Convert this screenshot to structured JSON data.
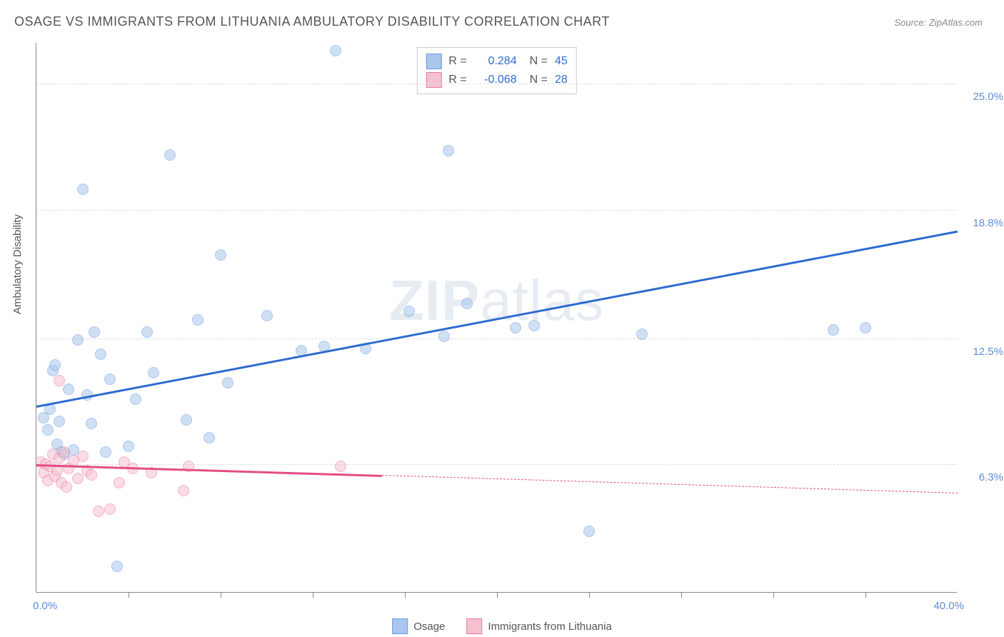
{
  "title": "OSAGE VS IMMIGRANTS FROM LITHUANIA AMBULATORY DISABILITY CORRELATION CHART",
  "source": "Source: ZipAtlas.com",
  "ylabel": "Ambulatory Disability",
  "watermark_bold": "ZIP",
  "watermark_rest": "atlas",
  "chart": {
    "type": "scatter",
    "xlim": [
      0,
      40
    ],
    "ylim": [
      0,
      27
    ],
    "x_axis_min_label": "0.0%",
    "x_axis_max_label": "40.0%",
    "y_ticks": [
      {
        "v": 6.3,
        "label": "6.3%"
      },
      {
        "v": 12.5,
        "label": "12.5%"
      },
      {
        "v": 18.8,
        "label": "18.8%"
      },
      {
        "v": 25.0,
        "label": "25.0%"
      }
    ],
    "x_tick_positions": [
      4,
      8,
      12,
      16,
      20,
      24,
      28,
      32,
      36
    ],
    "background_color": "#ffffff",
    "grid_color": "#dddddd",
    "axis_color": "#888888",
    "marker_radius": 8,
    "marker_opacity": 0.55,
    "series": [
      {
        "name": "Osage",
        "color_fill": "#a9c6ec",
        "color_stroke": "#6b9bdc",
        "trend_color": "#2f6bd0",
        "R": "0.284",
        "N": "45",
        "trend": {
          "x1": 0,
          "y1": 9.2,
          "x2": 40,
          "y2": 17.8,
          "dashed_from": 40
        },
        "points": [
          [
            0.3,
            8.6
          ],
          [
            0.5,
            8.0
          ],
          [
            0.6,
            9.0
          ],
          [
            0.7,
            10.9
          ],
          [
            0.8,
            11.2
          ],
          [
            0.9,
            7.3
          ],
          [
            1.0,
            8.4
          ],
          [
            1.1,
            6.9
          ],
          [
            1.2,
            6.8
          ],
          [
            1.4,
            10.0
          ],
          [
            1.6,
            7.0
          ],
          [
            1.8,
            12.4
          ],
          [
            2.0,
            19.8
          ],
          [
            2.2,
            9.7
          ],
          [
            2.4,
            8.3
          ],
          [
            2.5,
            12.8
          ],
          [
            2.8,
            11.7
          ],
          [
            3.0,
            6.9
          ],
          [
            3.2,
            10.5
          ],
          [
            3.5,
            1.3
          ],
          [
            4.0,
            7.2
          ],
          [
            4.3,
            9.5
          ],
          [
            4.8,
            12.8
          ],
          [
            5.1,
            10.8
          ],
          [
            5.8,
            21.5
          ],
          [
            6.5,
            8.5
          ],
          [
            7.0,
            13.4
          ],
          [
            7.5,
            7.6
          ],
          [
            8.0,
            16.6
          ],
          [
            8.3,
            10.3
          ],
          [
            10.0,
            13.6
          ],
          [
            11.5,
            11.9
          ],
          [
            12.5,
            12.1
          ],
          [
            13.0,
            26.6
          ],
          [
            14.3,
            12.0
          ],
          [
            16.2,
            13.8
          ],
          [
            17.7,
            12.6
          ],
          [
            17.9,
            21.7
          ],
          [
            18.7,
            14.2
          ],
          [
            20.8,
            13.0
          ],
          [
            21.6,
            13.1
          ],
          [
            24.0,
            3.0
          ],
          [
            26.3,
            12.7
          ],
          [
            34.6,
            12.9
          ],
          [
            36.0,
            13.0
          ]
        ]
      },
      {
        "name": "Immigrants from Lithuania",
        "color_fill": "#f5c1cf",
        "color_stroke": "#e77aa0",
        "trend_color": "#e44d87",
        "R": "-0.068",
        "N": "28",
        "trend": {
          "x1": 0,
          "y1": 6.3,
          "x2": 40,
          "y2": 4.9,
          "dashed_from": 15
        },
        "points": [
          [
            0.2,
            6.4
          ],
          [
            0.3,
            5.9
          ],
          [
            0.4,
            6.3
          ],
          [
            0.5,
            5.5
          ],
          [
            0.6,
            6.2
          ],
          [
            0.7,
            6.8
          ],
          [
            0.8,
            5.7
          ],
          [
            0.9,
            6.0
          ],
          [
            1.0,
            6.6
          ],
          [
            1.0,
            10.4
          ],
          [
            1.1,
            5.4
          ],
          [
            1.2,
            6.9
          ],
          [
            1.3,
            5.2
          ],
          [
            1.4,
            6.1
          ],
          [
            1.6,
            6.5
          ],
          [
            1.8,
            5.6
          ],
          [
            2.0,
            6.7
          ],
          [
            2.2,
            6.0
          ],
          [
            2.4,
            5.8
          ],
          [
            2.7,
            4.0
          ],
          [
            3.2,
            4.1
          ],
          [
            3.6,
            5.4
          ],
          [
            3.8,
            6.4
          ],
          [
            4.2,
            6.1
          ],
          [
            5.0,
            5.9
          ],
          [
            6.4,
            5.0
          ],
          [
            6.6,
            6.2
          ],
          [
            13.2,
            6.2
          ]
        ]
      }
    ]
  },
  "legend_bottom": [
    "Osage",
    "Immigrants from Lithuania"
  ],
  "legend_top_labels": {
    "R": "R =",
    "N": "N ="
  }
}
